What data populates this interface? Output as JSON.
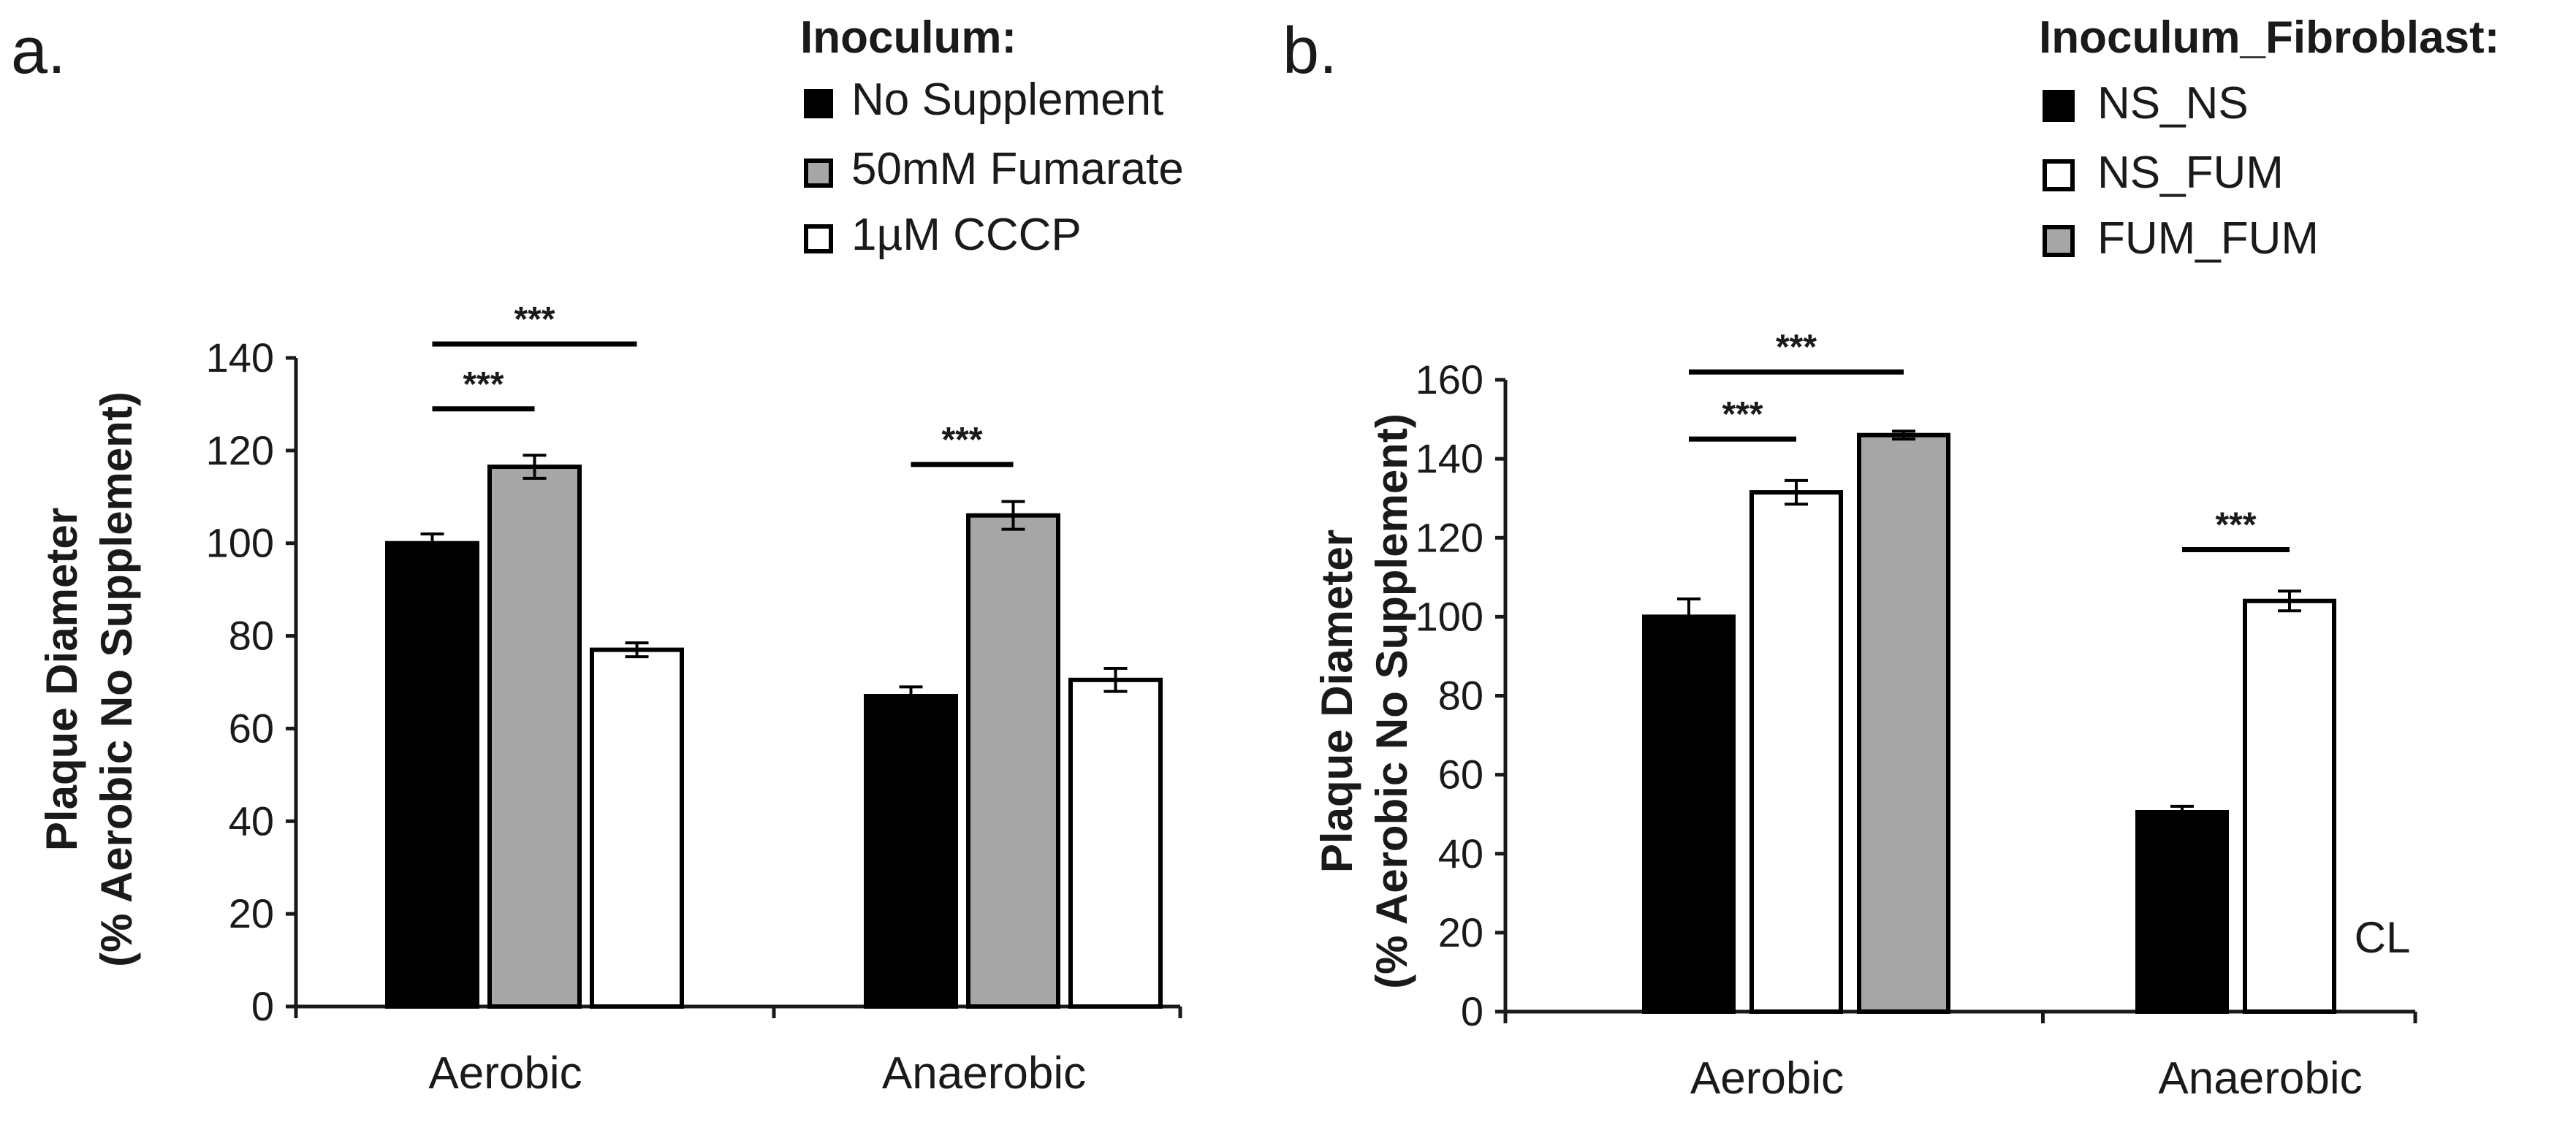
{
  "chart_data": [
    {
      "type": "bar",
      "panel_label": "a.",
      "title": "",
      "xlabel": "",
      "ylabel_line1": "Plaque Diameter",
      "ylabel_line2": "(% Aerobic No Supplement)",
      "ylim": [
        0,
        140
      ],
      "yticks": [
        0,
        20,
        40,
        60,
        80,
        100,
        120,
        140
      ],
      "categories": [
        "Aerobic",
        "Anaerobic"
      ],
      "legend_title": "Inoculum:",
      "legend_position": "top-right",
      "series": [
        {
          "name": "No Supplement",
          "color": "#000000",
          "values": [
            100,
            67
          ],
          "errors": [
            2,
            2
          ]
        },
        {
          "name": "50mM Fumarate",
          "color": "#a6a6a6",
          "values": [
            116.5,
            106
          ],
          "errors": [
            2.5,
            3
          ]
        },
        {
          "name": "1µM CCCP",
          "color": "#ffffff",
          "values": [
            77,
            70.5
          ],
          "errors": [
            1.5,
            2.5
          ]
        }
      ],
      "significance": [
        {
          "category": 0,
          "from_series": 0,
          "to_series": 1,
          "y": 129,
          "label": "***"
        },
        {
          "category": 0,
          "from_series": 0,
          "to_series": 2,
          "y": 143,
          "label": "***"
        },
        {
          "category": 1,
          "from_series": 0,
          "to_series": 1,
          "y": 117,
          "label": "***"
        }
      ],
      "annotations": []
    },
    {
      "type": "bar",
      "panel_label": "b.",
      "title": "",
      "xlabel": "",
      "ylabel_line1": "Plaque Diameter",
      "ylabel_line2": "(% Aerobic No Supplement)",
      "ylim": [
        0,
        160
      ],
      "yticks": [
        0,
        20,
        40,
        60,
        80,
        100,
        120,
        140,
        160
      ],
      "categories": [
        "Aerobic",
        "Anaerobic"
      ],
      "legend_title": "Inoculum_Fibroblast:",
      "legend_position": "top-right",
      "series": [
        {
          "name": "NS_NS",
          "color": "#000000",
          "values": [
            100,
            50.5
          ],
          "errors": [
            4.5,
            1.5
          ]
        },
        {
          "name": "NS_FUM",
          "color": "#ffffff",
          "values": [
            131.5,
            104
          ],
          "errors": [
            3,
            2.5
          ]
        },
        {
          "name": "FUM_FUM",
          "color": "#a6a6a6",
          "values": [
            146,
            null
          ],
          "errors": [
            1,
            null
          ]
        }
      ],
      "significance": [
        {
          "category": 0,
          "from_series": 0,
          "to_series": 1,
          "y": 145,
          "label": "***"
        },
        {
          "category": 0,
          "from_series": 0,
          "to_series": 2,
          "y": 162,
          "label": "***"
        },
        {
          "category": 1,
          "from_series": 0,
          "to_series": 1,
          "y": 117,
          "label": "***"
        }
      ],
      "annotations": [
        {
          "text": "CL",
          "category": 1,
          "series": 2,
          "y": 15
        }
      ]
    }
  ]
}
